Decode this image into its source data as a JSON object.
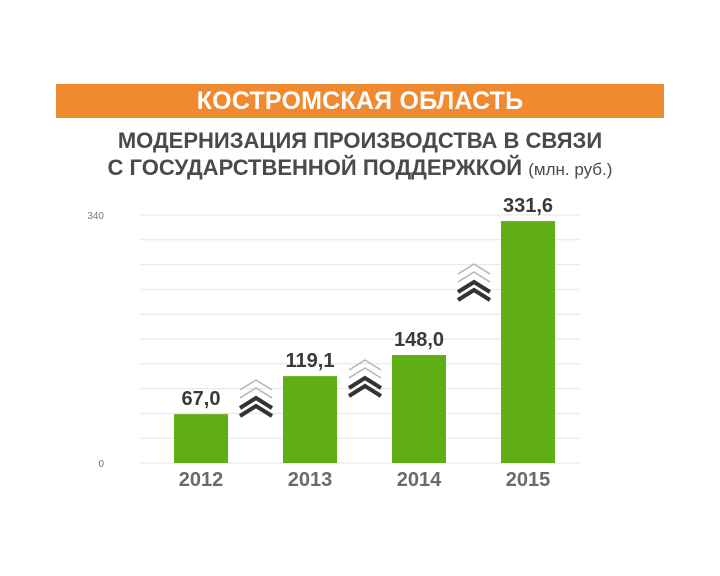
{
  "header": {
    "region": "КОСТРОМСКАЯ ОБЛАСТЬ",
    "title_line1": "МОДЕРНИЗАЦИЯ ПРОИЗВОДСТВА В СВЯЗИ",
    "title_line2": "С ГОСУДАРСТВЕННОЙ ПОДДЕРЖКОЙ",
    "unit": "(млн. руб.)"
  },
  "colors": {
    "banner": "#f08a30",
    "bar": "#5fae14",
    "grid": "#e6e6e6",
    "arrow_dark": "#333333"
  },
  "chart_data": {
    "type": "bar",
    "categories": [
      "2012",
      "2013",
      "2014",
      "2015"
    ],
    "values": [
      67.0,
      119.1,
      148.0,
      331.6
    ],
    "value_labels": [
      "67,0",
      "119,1",
      "148,0",
      "331,6"
    ],
    "ylim": [
      0,
      340
    ],
    "yticks": [
      "0",
      "340"
    ],
    "grid": true,
    "icons": [
      "double-chevron-up-icon",
      "double-chevron-up-icon",
      "double-chevron-up-icon"
    ]
  }
}
